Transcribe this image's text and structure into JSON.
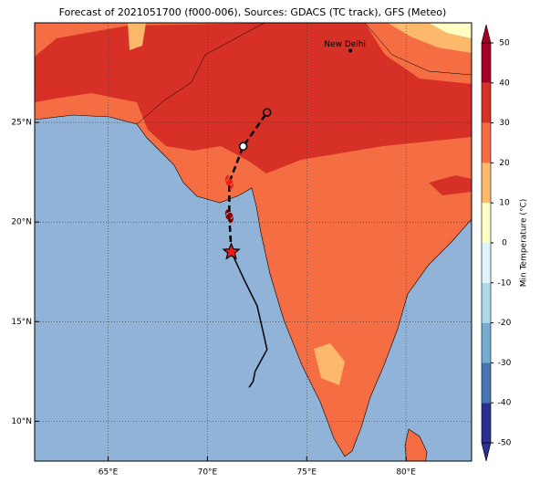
{
  "map": {
    "title": "Forecast of 2021051700 (f000-006), Sources: GDACS (TC track), GFS (Meteo)",
    "lonlim": [
      61.3,
      83.3
    ],
    "latlim": [
      8,
      30
    ],
    "lon_ticks": [
      {
        "value": 65,
        "label": "65°E"
      },
      {
        "value": 70,
        "label": "70°E"
      },
      {
        "value": 75,
        "label": "75°E"
      },
      {
        "value": 80,
        "label": "80°E"
      }
    ],
    "lat_ticks": [
      {
        "value": 10,
        "label": "10°N"
      },
      {
        "value": 15,
        "label": "15°N"
      },
      {
        "value": 20,
        "label": "20°N"
      },
      {
        "value": 25,
        "label": "25°N"
      }
    ],
    "grid": true,
    "colorbar": {
      "label": "Min Temperature (°C)",
      "lim": [
        -50,
        50
      ],
      "ticks": [
        -50,
        -40,
        -30,
        -20,
        -10,
        0,
        10,
        20,
        30,
        40,
        50
      ],
      "colors": [
        "#2b2f8f",
        "#4575b4",
        "#74add1",
        "#abd9e9",
        "#e0f3f8",
        "#fefec4",
        "#fdb96b",
        "#f46d43",
        "#d73027",
        "#a50026"
      ]
    },
    "city": {
      "name": "New Delhi",
      "lon": 77.2,
      "lat": 28.6
    },
    "forecast_track": {
      "lon": [
        71.2,
        71.1,
        71.1,
        71.8,
        73.0
      ],
      "lat": [
        18.5,
        20.3,
        22.0,
        23.8,
        25.5
      ],
      "color": "#000000"
    },
    "markers": [
      {
        "symbol": "star",
        "lon": 71.2,
        "lat": 18.5,
        "color": "#e8201c"
      },
      {
        "symbol": "cyclone",
        "lon": 71.1,
        "lat": 20.3,
        "color": "#8b0000"
      },
      {
        "symbol": "cyclone",
        "lon": 71.1,
        "lat": 22.0,
        "color": "#e8201c"
      },
      {
        "symbol": "circle",
        "lon": 71.8,
        "lat": 23.8,
        "color": "#ffffff"
      },
      {
        "symbol": "circle",
        "lon": 73.0,
        "lat": 25.5,
        "color": "none"
      }
    ],
    "observed_track": {
      "lon": [
        71.2,
        71.9,
        72.5,
        72.8,
        73.0,
        72.4,
        72.3,
        72.1
      ],
      "lat": [
        18.5,
        17.0,
        15.8,
        14.5,
        13.6,
        12.5,
        12.0,
        11.7
      ],
      "color": "#000000"
    }
  }
}
